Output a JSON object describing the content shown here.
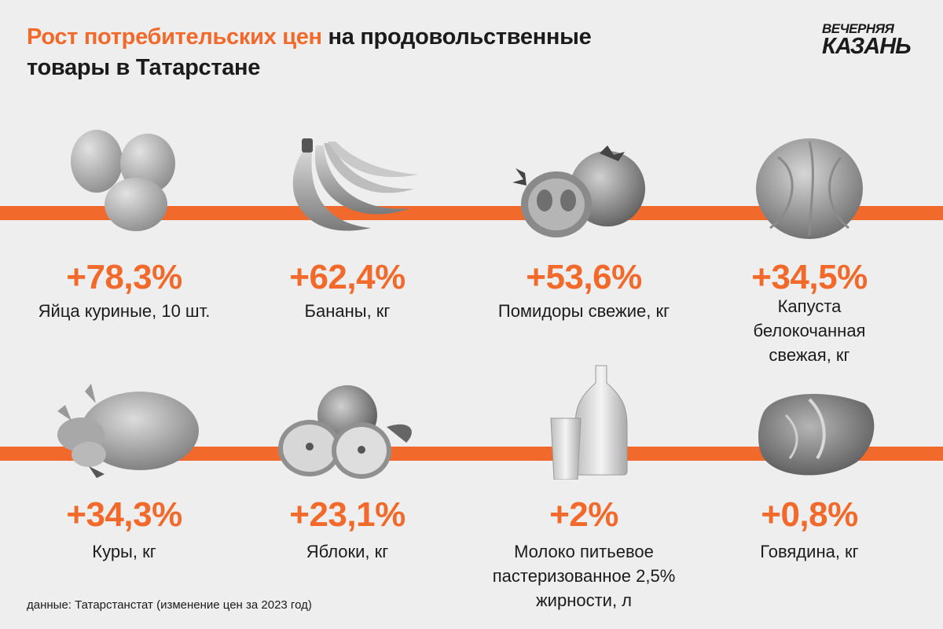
{
  "header": {
    "title_accent": "Рост потребительских цен",
    "title_rest": " на продовольственные товары в Татарстане"
  },
  "logo": {
    "line1": "ВЕЧЕРНЯЯ",
    "line2": "КАЗАНЬ"
  },
  "items": [
    {
      "icon": "eggs-icon",
      "value": "+78,3%",
      "label": "Яйца куриные, 10 шт."
    },
    {
      "icon": "bananas-icon",
      "value": "+62,4%",
      "label": "Бананы, кг"
    },
    {
      "icon": "tomatoes-icon",
      "value": "+53,6%",
      "label": "Помидоры свежие, кг"
    },
    {
      "icon": "cabbage-icon",
      "value": "+34,5%",
      "label": "Капуста белокочанная свежая, кг"
    },
    {
      "icon": "chicken-icon",
      "value": "+34,3%",
      "label": "Куры, кг"
    },
    {
      "icon": "apples-icon",
      "value": "+23,1%",
      "label": "Яблоки, кг"
    },
    {
      "icon": "milk-icon",
      "value": "+2%",
      "label": "Молоко питьевое пастеризованное 2,5% жирности, л"
    },
    {
      "icon": "beef-icon",
      "value": "+0,8%",
      "label": "Говядина, кг"
    }
  ],
  "footer": {
    "source": "данные: Татарстанстат (изменение цен за 2023 год)"
  },
  "colors": {
    "accent": "#f26a2b",
    "background": "#eeeeee",
    "text": "#1b1b1b"
  }
}
